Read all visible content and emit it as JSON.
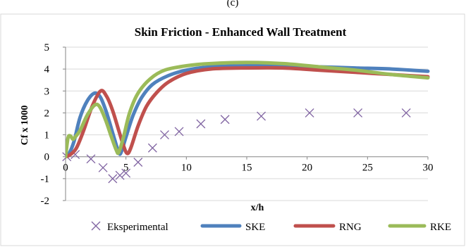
{
  "header_fragment": "(c)",
  "chart_data": {
    "type": "line",
    "title": "Skin Friction - Enhanced Wall Treatment",
    "xlabel": "x/h",
    "ylabel": "Cf x 1000",
    "xlim": [
      0,
      30
    ],
    "ylim": [
      -2,
      5
    ],
    "x_ticks": [
      0,
      5,
      10,
      15,
      20,
      25,
      30
    ],
    "y_ticks": [
      -2,
      -1,
      0,
      1,
      2,
      3,
      4,
      5
    ],
    "grid": "horizontal",
    "legend_position": "bottom",
    "series": [
      {
        "name": "Eksperimental",
        "style": "markers",
        "marker": "x",
        "color": "#8064A2",
        "points": [
          [
            0.1,
            0
          ],
          [
            0.8,
            0.1
          ],
          [
            2.1,
            -0.1
          ],
          [
            3.1,
            -0.5
          ],
          [
            3.9,
            -1.0
          ],
          [
            4.5,
            -0.85
          ],
          [
            5.0,
            -0.75
          ],
          [
            6.0,
            -0.25
          ],
          [
            7.2,
            0.4
          ],
          [
            8.2,
            1.0
          ],
          [
            9.4,
            1.15
          ],
          [
            11.2,
            1.5
          ],
          [
            13.2,
            1.7
          ],
          [
            16.2,
            1.85
          ],
          [
            20.2,
            2.0
          ],
          [
            24.2,
            2.0
          ],
          [
            28.2,
            2.0
          ]
        ]
      },
      {
        "name": "SKE",
        "style": "line",
        "color": "#4F81BD",
        "points": [
          [
            0,
            0
          ],
          [
            0.3,
            0.15
          ],
          [
            0.7,
            0.7
          ],
          [
            1.2,
            1.8
          ],
          [
            1.8,
            2.55
          ],
          [
            2.4,
            2.9
          ],
          [
            2.9,
            2.7
          ],
          [
            3.4,
            2.0
          ],
          [
            4.0,
            0.9
          ],
          [
            4.4,
            0.2
          ],
          [
            4.6,
            0.2
          ],
          [
            5.0,
            0.9
          ],
          [
            5.6,
            1.9
          ],
          [
            6.3,
            2.7
          ],
          [
            7.2,
            3.3
          ],
          [
            8.5,
            3.7
          ],
          [
            10,
            3.95
          ],
          [
            12,
            4.1
          ],
          [
            15,
            4.15
          ],
          [
            18,
            4.15
          ],
          [
            21,
            4.1
          ],
          [
            24,
            4.05
          ],
          [
            27,
            4.0
          ],
          [
            30,
            3.9
          ]
        ]
      },
      {
        "name": "RNG",
        "style": "line",
        "color": "#C0504D",
        "points": [
          [
            0,
            0
          ],
          [
            0.4,
            0.1
          ],
          [
            0.9,
            0.4
          ],
          [
            1.5,
            1.2
          ],
          [
            2.2,
            2.3
          ],
          [
            2.9,
            3.0
          ],
          [
            3.4,
            2.75
          ],
          [
            3.9,
            2.1
          ],
          [
            4.4,
            1.2
          ],
          [
            4.8,
            0.5
          ],
          [
            5.1,
            0.15
          ],
          [
            5.4,
            0.4
          ],
          [
            6.0,
            1.4
          ],
          [
            6.7,
            2.3
          ],
          [
            7.5,
            2.9
          ],
          [
            8.5,
            3.4
          ],
          [
            10,
            3.8
          ],
          [
            12,
            4.0
          ],
          [
            15,
            4.05
          ],
          [
            18,
            4.05
          ],
          [
            21,
            3.95
          ],
          [
            24,
            3.85
          ],
          [
            27,
            3.75
          ],
          [
            30,
            3.65
          ]
        ]
      },
      {
        "name": "RKE",
        "style": "line",
        "color": "#9BBB59",
        "points": [
          [
            0,
            0
          ],
          [
            0.2,
            0.85
          ],
          [
            0.4,
            0.95
          ],
          [
            0.6,
            0.8
          ],
          [
            0.8,
            0.9
          ],
          [
            1.2,
            1.2
          ],
          [
            1.8,
            1.9
          ],
          [
            2.4,
            2.35
          ],
          [
            2.8,
            2.3
          ],
          [
            3.3,
            1.7
          ],
          [
            3.8,
            0.9
          ],
          [
            4.2,
            0.3
          ],
          [
            4.4,
            0.2
          ],
          [
            4.8,
            0.9
          ],
          [
            5.3,
            2.0
          ],
          [
            6.0,
            2.9
          ],
          [
            7.0,
            3.55
          ],
          [
            8.2,
            3.95
          ],
          [
            10,
            4.15
          ],
          [
            12,
            4.25
          ],
          [
            15,
            4.3
          ],
          [
            18,
            4.25
          ],
          [
            21,
            4.1
          ],
          [
            24,
            3.95
          ],
          [
            27,
            3.75
          ],
          [
            30,
            3.6
          ]
        ]
      }
    ]
  }
}
